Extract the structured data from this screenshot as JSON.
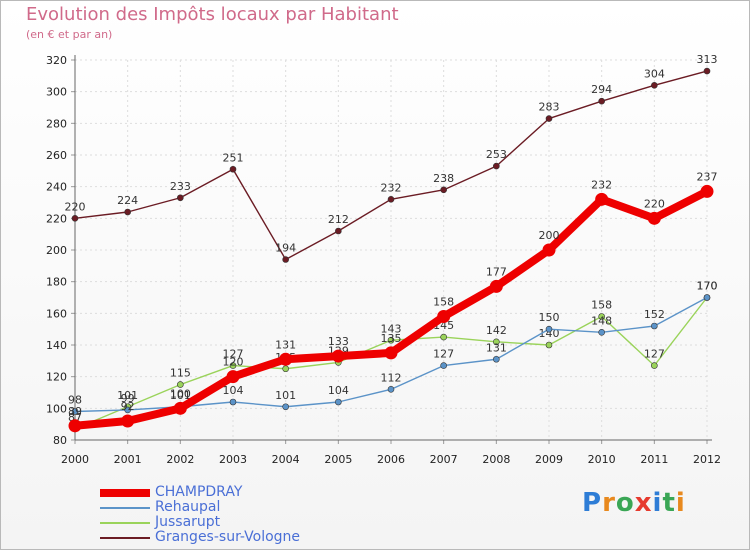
{
  "title": "Evolution des Impôts locaux par Habitant",
  "subtitle": "(en € et par an)",
  "logo": {
    "text": "Proxiti",
    "letters": [
      "P",
      "r",
      "o",
      "x",
      "i",
      "t",
      "i"
    ],
    "colors": [
      "#2e7dd6",
      "#e8891e",
      "#3aa655",
      "#e63a2e",
      "#2e7dd6",
      "#3aa655",
      "#e8891e"
    ]
  },
  "chart_data": {
    "type": "line",
    "x": [
      2000,
      2001,
      2002,
      2003,
      2004,
      2005,
      2006,
      2007,
      2008,
      2009,
      2010,
      2011,
      2012
    ],
    "ylim": [
      80,
      320
    ],
    "yticks": [
      80,
      100,
      120,
      140,
      160,
      180,
      200,
      220,
      240,
      260,
      280,
      300,
      320
    ],
    "grid": true,
    "legend": "bottom-left",
    "series": [
      {
        "name": "Granges-sur-Vologne",
        "color": "#6b1c24",
        "values": [
          220,
          224,
          233,
          251,
          194,
          212,
          232,
          238,
          253,
          283,
          294,
          304,
          313
        ]
      },
      {
        "name": "Jussarupt",
        "color": "#9ad35a",
        "values": [
          87,
          101,
          115,
          127,
          125,
          129,
          143,
          145,
          142,
          140,
          158,
          127,
          170
        ]
      },
      {
        "name": "Rehaupal",
        "color": "#5b93c8",
        "values": [
          98,
          99,
          101,
          104,
          101,
          104,
          112,
          127,
          131,
          150,
          148,
          152,
          170
        ]
      },
      {
        "name": "CHAMPDRAY",
        "color": "#ee0000",
        "values": [
          89,
          92,
          100,
          120,
          131,
          133,
          135,
          158,
          177,
          200,
          232,
          220,
          237
        ]
      }
    ]
  },
  "legend_order": [
    "CHAMPDRAY",
    "Rehaupal",
    "Jussarupt",
    "Granges-sur-Vologne"
  ]
}
